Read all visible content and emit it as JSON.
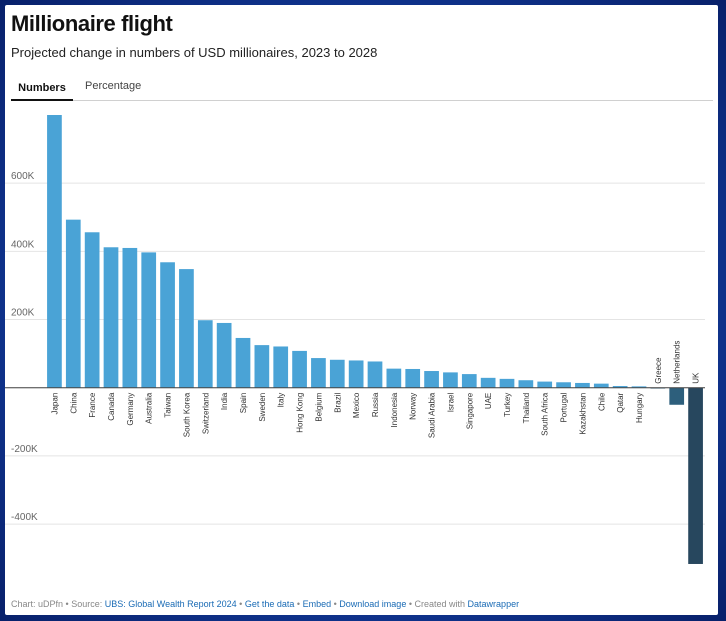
{
  "title": "Millionaire flight",
  "subtitle": "Projected change in numbers of USD millionaires, 2023 to 2028",
  "tabs": [
    {
      "label": "Numbers",
      "active": true
    },
    {
      "label": "Percentage",
      "active": false
    }
  ],
  "colors": {
    "positive_bar": "#4aa3d6",
    "negative_bar": "#2d5f7c",
    "uk_bar_dark": "#27475e",
    "link": "#1a6bb5",
    "background": "#1d4fb8"
  },
  "chart_data": {
    "type": "bar",
    "title": "Millionaire flight",
    "subtitle": "Projected change in numbers of USD millionaires, 2023 to 2028",
    "xlabel": "",
    "ylabel": "",
    "ylim": [
      -520000,
      800000
    ],
    "yticks": [
      -400000,
      -200000,
      0,
      200000,
      400000,
      600000
    ],
    "ytick_labels": [
      "-400K",
      "-200K",
      "",
      "200K",
      "400K",
      "600K"
    ],
    "grid": true,
    "categories": [
      "Japan",
      "China",
      "France",
      "Canada",
      "Germany",
      "Australia",
      "Taiwan",
      "South Korea",
      "Switzerland",
      "India",
      "Spain",
      "Sweden",
      "Italy",
      "Hong Kong",
      "Belgium",
      "Brazil",
      "Mexico",
      "Russia",
      "Indonesia",
      "Norway",
      "Saudi Arabia",
      "Israel",
      "Singapore",
      "UAE",
      "Turkey",
      "Thailand",
      "South Africa",
      "Portugal",
      "Kazakhstan",
      "Chile",
      "Qatar",
      "Hungary",
      "Greece",
      "Netherlands",
      "UK"
    ],
    "values": [
      812000,
      493000,
      456000,
      412000,
      410000,
      397000,
      368000,
      348000,
      198000,
      190000,
      146000,
      125000,
      121000,
      108000,
      87000,
      82000,
      80000,
      77000,
      56000,
      55000,
      49000,
      45000,
      40000,
      29000,
      26000,
      22000,
      18000,
      16000,
      14000,
      12000,
      5000,
      4000,
      -1000,
      -50000,
      -517000
    ]
  },
  "footer": {
    "chart_id": "Chart: uDPfn",
    "source_prefix": "• Source:",
    "source_link": "UBS: Global Wealth Report 2024",
    "sep1": "•",
    "get_data": "Get the data",
    "sep2": "•",
    "embed": "Embed",
    "sep3": "•",
    "download": "Download image",
    "created_prefix": "• Created with",
    "datawrapper": "Datawrapper"
  }
}
